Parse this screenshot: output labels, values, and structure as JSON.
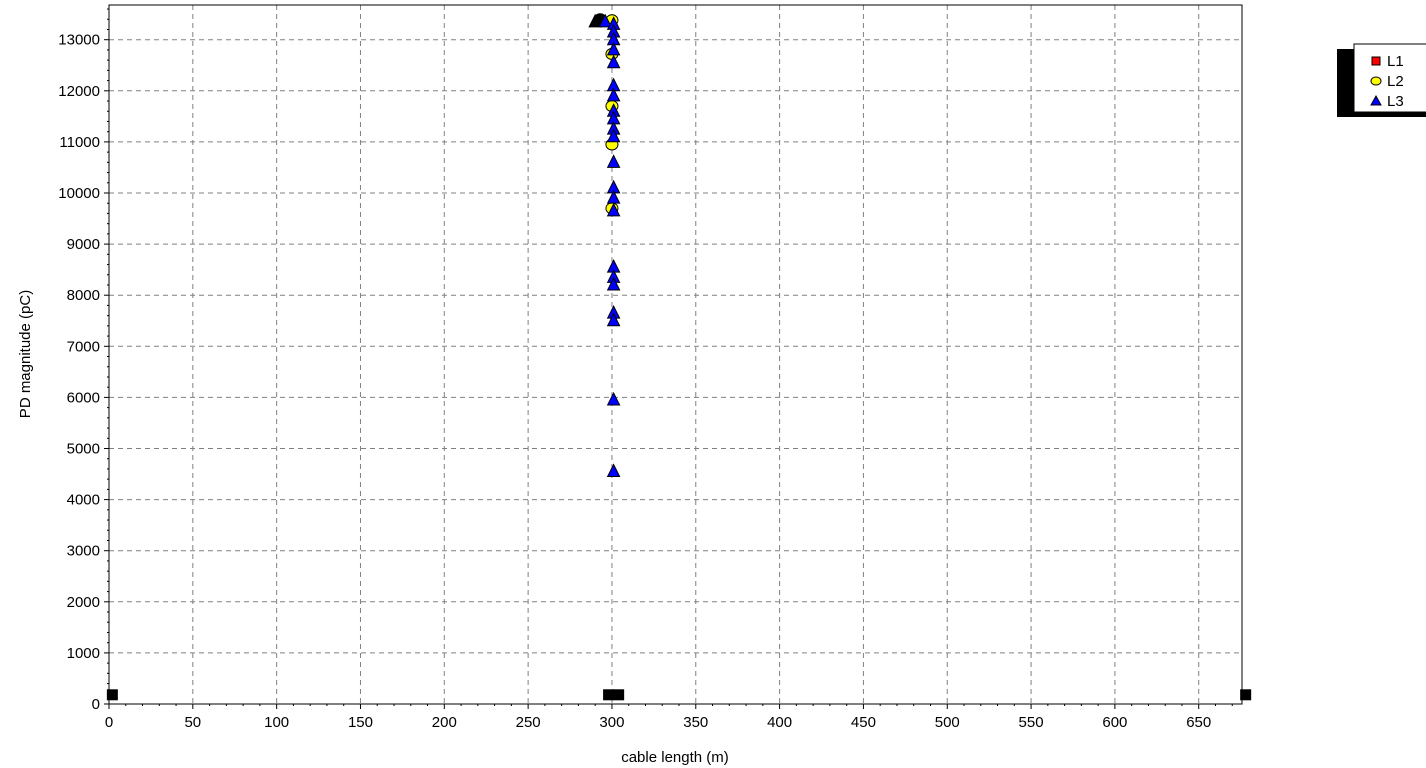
{
  "chart_data": {
    "type": "scatter",
    "title": "",
    "xlabel": "cable length (m)",
    "ylabel": "PD magnitude (pC)",
    "xlim": [
      0,
      680
    ],
    "ylim": [
      0,
      13700
    ],
    "x_ticks": [
      0,
      50,
      100,
      150,
      200,
      250,
      300,
      350,
      400,
      450,
      500,
      550,
      600,
      650
    ],
    "y_ticks": [
      0,
      1000,
      2000,
      3000,
      4000,
      5000,
      6000,
      7000,
      8000,
      9000,
      10000,
      11000,
      12000,
      13000
    ],
    "grid": true,
    "legend_position": "top-right, outside plot",
    "legend_entries": [
      "L1",
      "L2",
      "L3"
    ],
    "markers": [
      {
        "x": 2,
        "y": 180,
        "symbol": "square",
        "color": "#000000"
      },
      {
        "x": 298,
        "y": 180,
        "symbol": "square",
        "color": "#000000"
      },
      {
        "x": 304,
        "y": 180,
        "symbol": "square",
        "color": "#000000"
      },
      {
        "x": 678,
        "y": 180,
        "symbol": "square",
        "color": "#000000"
      },
      {
        "x": 290,
        "y": 13350,
        "symbol": "triangle",
        "color": "#000000"
      },
      {
        "x": 293,
        "y": 13400,
        "symbol": "circle",
        "color": "#000000"
      }
    ],
    "series": [
      {
        "name": "L1",
        "symbol": "square",
        "color": "#ff0000",
        "points": []
      },
      {
        "name": "L2",
        "symbol": "circle",
        "color": "#ffff00",
        "points": [
          [
            300,
            13380
          ],
          [
            300,
            12720
          ],
          [
            300,
            11700
          ],
          [
            300,
            10950
          ],
          [
            300,
            9700
          ]
        ]
      },
      {
        "name": "L3",
        "symbol": "triangle",
        "color": "#0000ff",
        "points": [
          [
            296,
            13350
          ],
          [
            301,
            13300
          ],
          [
            301,
            13150
          ],
          [
            301,
            13000
          ],
          [
            301,
            12800
          ],
          [
            301,
            12550
          ],
          [
            301,
            12100
          ],
          [
            301,
            11900
          ],
          [
            301,
            11600
          ],
          [
            301,
            11450
          ],
          [
            301,
            11250
          ],
          [
            301,
            11100
          ],
          [
            301,
            10600
          ],
          [
            301,
            10100
          ],
          [
            301,
            9900
          ],
          [
            301,
            9650
          ],
          [
            301,
            8550
          ],
          [
            301,
            8350
          ],
          [
            301,
            8200
          ],
          [
            301,
            7650
          ],
          [
            301,
            7500
          ],
          [
            301,
            5950
          ],
          [
            301,
            4550
          ]
        ]
      }
    ]
  }
}
